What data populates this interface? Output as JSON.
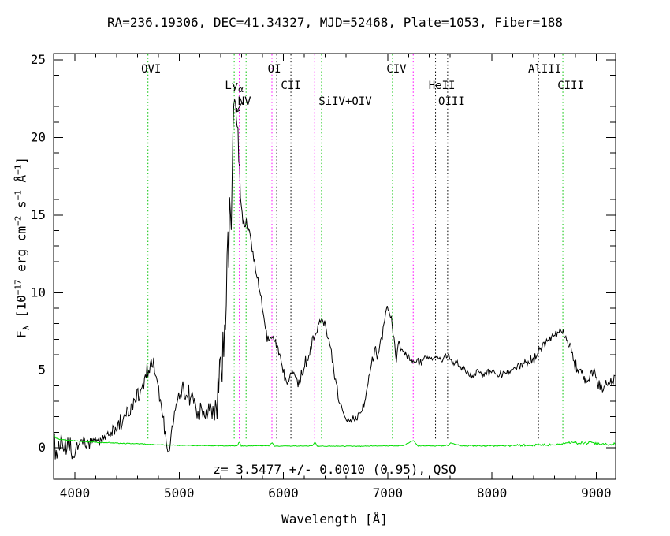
{
  "header": {
    "title": "RA=236.19306, DEC=41.34327, MJD=52468, Plate=1053, Fiber=188"
  },
  "annotation": {
    "text": "z= 3.5477 +/- 0.0010 (0.95), QSO"
  },
  "axes": {
    "xlabel": "Wavelength [Å]",
    "ylabel_plain": "Fλ [10⁻¹⁷ erg cm⁻² s⁻¹ Å⁻¹]",
    "ylabel_segments": [
      {
        "t": "F"
      },
      {
        "t": "λ",
        "s": "sub"
      },
      {
        "t": " [10"
      },
      {
        "t": "−17",
        "s": "sup"
      },
      {
        "t": " erg cm"
      },
      {
        "t": "−2",
        "s": "sup"
      },
      {
        "t": " s"
      },
      {
        "t": "−1",
        "s": "sup"
      },
      {
        "t": " Å"
      },
      {
        "t": "−1",
        "s": "sup"
      },
      {
        "t": "]"
      }
    ]
  },
  "colors": {
    "frame": "#000000",
    "spectrum": "#000000",
    "noise_spectrum": "#00dd00",
    "emission_green": "#00c400",
    "emission_black": "#000000",
    "sky_magenta": "#ff00ff"
  },
  "chart_data": {
    "type": "line",
    "title": "RA=236.19306, DEC=41.34327, MJD=52468, Plate=1053, Fiber=188",
    "xlabel": "Wavelength [Å]",
    "ylabel": "Fλ [10⁻¹⁷ erg cm⁻² s⁻¹ Å⁻¹]",
    "xlim": [
      3796,
      9186
    ],
    "ylim": [
      -2.03,
      25.41
    ],
    "xticks": [
      4000,
      5000,
      6000,
      7000,
      8000,
      9000
    ],
    "yticks": [
      0,
      5,
      10,
      15,
      20,
      25
    ],
    "x_minor_step": 200,
    "y_minor_step": 1,
    "grid": false,
    "emission_lines": [
      {
        "label": "OVI",
        "sub": "",
        "wavelength": 4701,
        "color": "green",
        "row": 1,
        "dx": 4
      },
      {
        "label": "Ly",
        "sub": "α",
        "wavelength": 5528,
        "color": "green",
        "row": 2,
        "dx": 0
      },
      {
        "label": "NV",
        "sub": "",
        "wavelength": 5642,
        "color": "green",
        "row": 3,
        "dx": -2
      },
      {
        "label": "OI",
        "sub": "",
        "wavelength": 5936,
        "color": "black",
        "row": 1,
        "dx": -3
      },
      {
        "label": "CII",
        "sub": "",
        "wavelength": 6072,
        "color": "black",
        "row": 2,
        "dx": 0
      },
      {
        "label": "SiIV+OIV",
        "sub": "",
        "wavelength": 6366,
        "color": "green",
        "row": 3,
        "dx": 30
      },
      {
        "label": "CIV",
        "sub": "",
        "wavelength": 7046,
        "color": "green",
        "row": 1,
        "dx": 5
      },
      {
        "label": "HeII",
        "sub": "",
        "wavelength": 7459,
        "color": "black",
        "row": 2,
        "dx": 8
      },
      {
        "label": "OIII",
        "sub": "",
        "wavelength": 7575,
        "color": "black",
        "row": 3,
        "dx": 5
      },
      {
        "label": "AlIII",
        "sub": "",
        "wavelength": 8446,
        "color": "black",
        "row": 1,
        "dx": 8
      },
      {
        "label": "CIII",
        "sub": "",
        "wavelength": 8680,
        "color": "green",
        "row": 2,
        "dx": 10
      }
    ],
    "sky_lines": [
      5577,
      5890,
      6300,
      7245
    ],
    "series": [
      {
        "name": "object-spectrum",
        "color": "#000000",
        "sample_step": 8,
        "seed": 1234,
        "points": [
          [
            3796,
            0.3,
            0.9
          ],
          [
            3830,
            -0.3,
            0.9
          ],
          [
            3860,
            0.3,
            0.8
          ],
          [
            3900,
            -0.2,
            0.8
          ],
          [
            3940,
            0.2,
            0.8
          ],
          [
            3980,
            -0.4,
            0.7
          ],
          [
            3995,
            -0.7,
            0.5
          ],
          [
            4010,
            0.1,
            0.7
          ],
          [
            4050,
            0.2,
            0.7
          ],
          [
            4100,
            0.3,
            0.65
          ],
          [
            4150,
            0.25,
            0.6
          ],
          [
            4200,
            0.4,
            0.6
          ],
          [
            4250,
            0.55,
            0.6
          ],
          [
            4300,
            0.75,
            0.6
          ],
          [
            4350,
            1.0,
            0.6
          ],
          [
            4400,
            1.35,
            0.65
          ],
          [
            4450,
            1.75,
            0.7
          ],
          [
            4500,
            2.2,
            0.7
          ],
          [
            4550,
            2.7,
            0.75
          ],
          [
            4600,
            3.3,
            0.8
          ],
          [
            4650,
            4.1,
            0.85
          ],
          [
            4690,
            4.7,
            0.85
          ],
          [
            4730,
            5.3,
            0.8
          ],
          [
            4760,
            5.0,
            0.8
          ],
          [
            4800,
            3.9,
            0.7
          ],
          [
            4840,
            2.3,
            0.6
          ],
          [
            4870,
            0.6,
            0.5
          ],
          [
            4890,
            -0.3,
            0.35
          ],
          [
            4910,
            -0.1,
            0.4
          ],
          [
            4930,
            1.2,
            0.6
          ],
          [
            4960,
            2.4,
            0.8
          ],
          [
            5000,
            3.3,
            0.9
          ],
          [
            5040,
            4.0,
            0.9
          ],
          [
            5070,
            3.2,
            1.0
          ],
          [
            5100,
            3.4,
            0.9
          ],
          [
            5140,
            2.9,
            0.9
          ],
          [
            5180,
            2.5,
            0.9
          ],
          [
            5220,
            2.3,
            0.9
          ],
          [
            5260,
            2.4,
            0.9
          ],
          [
            5300,
            2.3,
            1.0
          ],
          [
            5330,
            2.1,
            1.1
          ],
          [
            5360,
            3.0,
            1.5
          ],
          [
            5390,
            4.2,
            2.0
          ],
          [
            5420,
            6.0,
            2.8
          ],
          [
            5450,
            9.0,
            3.5
          ],
          [
            5475,
            12.5,
            4.0
          ],
          [
            5495,
            15.0,
            4.0
          ],
          [
            5512,
            18.5,
            2.5
          ],
          [
            5523,
            21.5,
            1.2
          ],
          [
            5530,
            22.7,
            0.5
          ],
          [
            5540,
            21.8,
            1.2
          ],
          [
            5550,
            20.8,
            1.5
          ],
          [
            5558,
            21.2,
            0.8
          ],
          [
            5568,
            19.8,
            1.0
          ],
          [
            5585,
            17.0,
            0.9
          ],
          [
            5605,
            15.2,
            0.7
          ],
          [
            5630,
            14.4,
            0.5
          ],
          [
            5660,
            14.3,
            0.45
          ],
          [
            5680,
            13.7,
            0.45
          ],
          [
            5705,
            12.6,
            0.4
          ],
          [
            5735,
            11.5,
            0.4
          ],
          [
            5765,
            10.4,
            0.45
          ],
          [
            5790,
            9.5,
            0.5
          ],
          [
            5815,
            8.4,
            0.5
          ],
          [
            5835,
            7.3,
            0.45
          ],
          [
            5860,
            6.9,
            0.4
          ],
          [
            5890,
            7.1,
            0.4
          ],
          [
            5915,
            6.8,
            0.4
          ],
          [
            5940,
            6.5,
            0.4
          ],
          [
            5965,
            6.0,
            0.4
          ],
          [
            5990,
            5.3,
            0.4
          ],
          [
            6020,
            4.5,
            0.4
          ],
          [
            6045,
            4.4,
            0.4
          ],
          [
            6070,
            4.9,
            0.4
          ],
          [
            6090,
            5.0,
            0.4
          ],
          [
            6115,
            4.7,
            0.45
          ],
          [
            6140,
            4.2,
            0.5
          ],
          [
            6165,
            4.5,
            0.5
          ],
          [
            6195,
            5.1,
            0.5
          ],
          [
            6230,
            5.8,
            0.55
          ],
          [
            6265,
            6.5,
            0.6
          ],
          [
            6300,
            7.3,
            0.6
          ],
          [
            6330,
            8.0,
            0.55
          ],
          [
            6360,
            8.4,
            0.5
          ],
          [
            6390,
            8.2,
            0.5
          ],
          [
            6420,
            7.5,
            0.5
          ],
          [
            6450,
            6.4,
            0.5
          ],
          [
            6480,
            5.1,
            0.5
          ],
          [
            6510,
            3.9,
            0.45
          ],
          [
            6540,
            2.9,
            0.4
          ],
          [
            6570,
            2.3,
            0.35
          ],
          [
            6600,
            2.0,
            0.3
          ],
          [
            6640,
            1.85,
            0.3
          ],
          [
            6680,
            1.9,
            0.3
          ],
          [
            6720,
            2.1,
            0.3
          ],
          [
            6755,
            2.5,
            0.35
          ],
          [
            6790,
            3.4,
            0.45
          ],
          [
            6825,
            4.6,
            0.5
          ],
          [
            6855,
            5.8,
            0.45
          ],
          [
            6880,
            6.4,
            0.4
          ],
          [
            6900,
            5.9,
            0.4
          ],
          [
            6925,
            6.6,
            0.4
          ],
          [
            6950,
            7.4,
            0.35
          ],
          [
            6975,
            8.4,
            0.35
          ],
          [
            6995,
            9.0,
            0.3
          ],
          [
            7015,
            8.8,
            0.3
          ],
          [
            7040,
            8.1,
            0.35
          ],
          [
            7065,
            6.8,
            0.5
          ],
          [
            7085,
            5.7,
            0.5
          ],
          [
            7105,
            6.6,
            0.4
          ],
          [
            7130,
            6.3,
            0.35
          ],
          [
            7160,
            6.0,
            0.3
          ],
          [
            7200,
            5.8,
            0.3
          ],
          [
            7250,
            5.6,
            0.3
          ],
          [
            7300,
            5.5,
            0.3
          ],
          [
            7350,
            5.65,
            0.3
          ],
          [
            7400,
            5.75,
            0.3
          ],
          [
            7460,
            5.8,
            0.3
          ],
          [
            7520,
            5.7,
            0.3
          ],
          [
            7575,
            5.9,
            0.3
          ],
          [
            7620,
            5.6,
            0.3
          ],
          [
            7680,
            5.3,
            0.3
          ],
          [
            7740,
            4.95,
            0.3
          ],
          [
            7800,
            4.7,
            0.3
          ],
          [
            7860,
            4.85,
            0.35
          ],
          [
            7920,
            4.75,
            0.35
          ],
          [
            7980,
            4.85,
            0.35
          ],
          [
            8040,
            4.8,
            0.35
          ],
          [
            8100,
            4.75,
            0.4
          ],
          [
            8160,
            5.0,
            0.4
          ],
          [
            8220,
            5.25,
            0.4
          ],
          [
            8280,
            5.3,
            0.4
          ],
          [
            8340,
            5.45,
            0.4
          ],
          [
            8400,
            5.7,
            0.4
          ],
          [
            8450,
            6.3,
            0.4
          ],
          [
            8500,
            6.6,
            0.4
          ],
          [
            8550,
            6.95,
            0.35
          ],
          [
            8600,
            7.25,
            0.3
          ],
          [
            8645,
            7.5,
            0.3
          ],
          [
            8680,
            7.4,
            0.35
          ],
          [
            8720,
            7.0,
            0.4
          ],
          [
            8760,
            6.3,
            0.45
          ],
          [
            8795,
            5.4,
            0.5
          ],
          [
            8825,
            4.8,
            0.5
          ],
          [
            8855,
            4.9,
            0.6
          ],
          [
            8885,
            4.3,
            0.55
          ],
          [
            8915,
            3.9,
            0.5
          ],
          [
            8945,
            4.7,
            0.5
          ],
          [
            8975,
            5.0,
            0.6
          ],
          [
            9005,
            4.3,
            0.5
          ],
          [
            9035,
            3.85,
            0.45
          ],
          [
            9070,
            3.9,
            0.45
          ],
          [
            9110,
            4.15,
            0.45
          ],
          [
            9150,
            4.3,
            0.5
          ],
          [
            9186,
            4.5,
            0.5
          ]
        ]
      },
      {
        "name": "noise-spectrum",
        "color": "#00dd00",
        "sample_step": 8,
        "seed": 99,
        "points": [
          [
            3796,
            0.8,
            0.06
          ],
          [
            3830,
            0.6,
            0.05
          ],
          [
            3870,
            0.52,
            0.05
          ],
          [
            3950,
            0.48,
            0.04
          ],
          [
            4050,
            0.42,
            0.04
          ],
          [
            4200,
            0.35,
            0.04
          ],
          [
            4400,
            0.3,
            0.04
          ],
          [
            4600,
            0.26,
            0.04
          ],
          [
            4800,
            0.2,
            0.04
          ],
          [
            5000,
            0.16,
            0.03
          ],
          [
            5200,
            0.14,
            0.03
          ],
          [
            5400,
            0.13,
            0.03
          ],
          [
            5560,
            0.13,
            0.03
          ],
          [
            5577,
            0.42,
            0.02
          ],
          [
            5595,
            0.12,
            0.03
          ],
          [
            5700,
            0.12,
            0.03
          ],
          [
            5860,
            0.14,
            0.04
          ],
          [
            5890,
            0.33,
            0.03
          ],
          [
            5915,
            0.11,
            0.03
          ],
          [
            6100,
            0.11,
            0.03
          ],
          [
            6280,
            0.13,
            0.03
          ],
          [
            6302,
            0.38,
            0.02
          ],
          [
            6325,
            0.1,
            0.03
          ],
          [
            6500,
            0.1,
            0.03
          ],
          [
            6700,
            0.1,
            0.03
          ],
          [
            6900,
            0.12,
            0.03
          ],
          [
            7150,
            0.13,
            0.04
          ],
          [
            7245,
            0.48,
            0.03
          ],
          [
            7290,
            0.12,
            0.03
          ],
          [
            7450,
            0.12,
            0.04
          ],
          [
            7580,
            0.15,
            0.05
          ],
          [
            7605,
            0.32,
            0.05
          ],
          [
            7640,
            0.25,
            0.05
          ],
          [
            7700,
            0.13,
            0.04
          ],
          [
            7900,
            0.12,
            0.05
          ],
          [
            8100,
            0.13,
            0.06
          ],
          [
            8300,
            0.16,
            0.08
          ],
          [
            8450,
            0.2,
            0.09
          ],
          [
            8600,
            0.18,
            0.08
          ],
          [
            8770,
            0.35,
            0.12
          ],
          [
            8850,
            0.28,
            0.14
          ],
          [
            8950,
            0.35,
            0.16
          ],
          [
            9050,
            0.22,
            0.1
          ],
          [
            9130,
            0.2,
            0.1
          ],
          [
            9186,
            0.28,
            0.08
          ]
        ]
      }
    ]
  }
}
